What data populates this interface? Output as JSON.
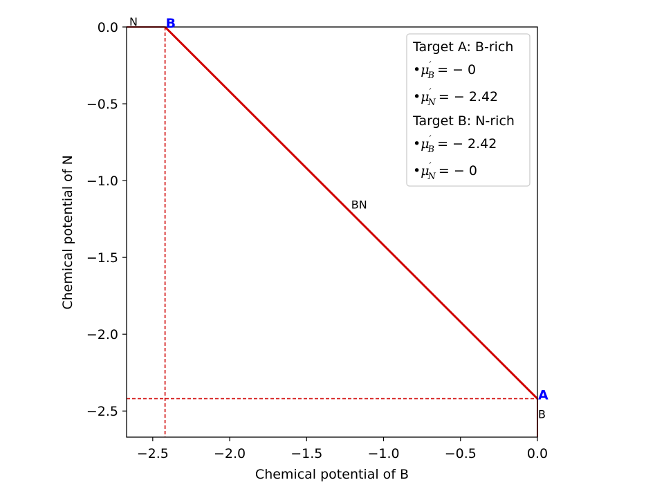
{
  "chart_data": {
    "type": "line",
    "xlabel": "Chemical potential of B",
    "ylabel": "Chemical potential of N",
    "xlim": [
      -2.67,
      0.0
    ],
    "ylim": [
      -2.67,
      0.0
    ],
    "x_ticks": [
      -2.5,
      -2.0,
      -1.5,
      -1.0,
      -0.5,
      0.0
    ],
    "x_tick_labels": [
      "−2.5",
      "−2.0",
      "−1.5",
      "−1.0",
      "−0.5",
      "0.0"
    ],
    "y_ticks": [
      0.0,
      -0.5,
      -1.0,
      -1.5,
      -2.0,
      -2.5
    ],
    "y_tick_labels": [
      "0.0",
      "−0.5",
      "−1.0",
      "−1.5",
      "−2.0",
      "−2.5"
    ],
    "grid": false,
    "color": "#d00000",
    "boundaries": [
      {
        "label": "BN",
        "x": [
          -2.42,
          0.0
        ],
        "y": [
          0.0,
          -2.42
        ],
        "label_at": [
          -1.21,
          -1.21
        ]
      },
      {
        "label": "N",
        "x": [
          -2.67,
          -2.42
        ],
        "y": [
          0.0,
          0.0
        ],
        "label_at": [
          -2.58,
          0.0
        ]
      },
      {
        "label": "B",
        "x": [
          0.0,
          0.0
        ],
        "y": [
          -2.42,
          -2.67
        ],
        "label_at": [
          0.0,
          -2.52
        ]
      }
    ],
    "dashed_lines": [
      {
        "orientation": "vertical",
        "value": -2.42
      },
      {
        "orientation": "horizontal",
        "value": -2.42
      }
    ],
    "points": [
      {
        "label": "A",
        "x": 0.0,
        "y": -2.42
      },
      {
        "label": "B",
        "x": -2.42,
        "y": 0.0
      }
    ],
    "legend": {
      "position": "top-right",
      "entries": [
        {
          "kind": "text",
          "text": "Target A: B-rich"
        },
        {
          "kind": "math",
          "bullet": "•",
          "symbol": "μ",
          "sub": "B",
          "value": "= − 0"
        },
        {
          "kind": "math",
          "bullet": "•",
          "symbol": "μ",
          "sub": "N",
          "value": "= − 2.42"
        },
        {
          "kind": "text",
          "text": "Target B: N-rich"
        },
        {
          "kind": "math",
          "bullet": "•",
          "symbol": "μ",
          "sub": "B",
          "value": "= − 2.42"
        },
        {
          "kind": "math",
          "bullet": "•",
          "symbol": "μ",
          "sub": "N",
          "value": "= − 0"
        }
      ]
    }
  }
}
